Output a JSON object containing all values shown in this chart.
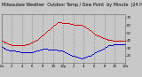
{
  "title": "Milwaukee Weather  Outdoor Temp / Dew Point  by Minute  (24 Hours) (Alternate)",
  "background_color": "#c8c8c8",
  "plot_bg_color": "#c8c8c8",
  "grid_color": "#888888",
  "temp_color": "#cc0000",
  "dew_color": "#0000cc",
  "ylim": [
    10,
    75
  ],
  "xlim": [
    0,
    1440
  ],
  "yticks": [
    20,
    30,
    40,
    50,
    60,
    70
  ],
  "xticks": [
    0,
    120,
    240,
    360,
    480,
    600,
    720,
    840,
    960,
    1080,
    1200,
    1320,
    1440
  ],
  "xtick_labels": [
    "12a",
    "2",
    "4",
    "6",
    "8",
    "10",
    "12p",
    "2",
    "4",
    "6",
    "8",
    "10",
    "12a"
  ],
  "title_fontsize": 3.5,
  "tick_fontsize": 2.8,
  "temp_data_x": [
    0,
    10,
    20,
    30,
    40,
    50,
    60,
    70,
    80,
    90,
    100,
    110,
    120,
    130,
    140,
    150,
    160,
    170,
    180,
    190,
    200,
    210,
    220,
    230,
    240,
    250,
    260,
    270,
    280,
    290,
    300,
    310,
    320,
    330,
    340,
    350,
    360,
    370,
    380,
    390,
    400,
    410,
    420,
    430,
    440,
    450,
    460,
    470,
    480,
    490,
    500,
    510,
    520,
    530,
    540,
    550,
    560,
    570,
    580,
    590,
    600,
    610,
    620,
    630,
    640,
    650,
    660,
    670,
    680,
    690,
    700,
    710,
    720,
    730,
    740,
    750,
    760,
    770,
    780,
    790,
    800,
    810,
    820,
    830,
    840,
    850,
    860,
    870,
    880,
    890,
    900,
    910,
    920,
    930,
    940,
    950,
    960,
    970,
    980,
    990,
    1000,
    1010,
    1020,
    1030,
    1040,
    1050,
    1060,
    1070,
    1080,
    1090,
    1100,
    1110,
    1120,
    1130,
    1140,
    1150,
    1160,
    1170,
    1180,
    1190,
    1200,
    1210,
    1220,
    1230,
    1240,
    1250,
    1260,
    1270,
    1280,
    1290,
    1300,
    1310,
    1320,
    1330,
    1340,
    1350,
    1360,
    1370,
    1380,
    1390,
    1400,
    1410,
    1420,
    1430,
    1440
  ],
  "temp_data_y": [
    38,
    38,
    37,
    37,
    36,
    36,
    36,
    35,
    35,
    34,
    34,
    34,
    33,
    33,
    33,
    33,
    33,
    33,
    33,
    33,
    33,
    33,
    33,
    33,
    33,
    33,
    33,
    33,
    34,
    34,
    34,
    34,
    35,
    35,
    35,
    36,
    36,
    37,
    37,
    38,
    38,
    39,
    40,
    41,
    42,
    43,
    44,
    45,
    46,
    47,
    48,
    49,
    50,
    51,
    52,
    53,
    54,
    55,
    56,
    57,
    58,
    59,
    60,
    61,
    61,
    62,
    63,
    63,
    63,
    63,
    63,
    62,
    62,
    62,
    62,
    62,
    62,
    62,
    62,
    62,
    61,
    61,
    61,
    61,
    60,
    60,
    60,
    60,
    60,
    60,
    60,
    60,
    60,
    59,
    59,
    58,
    58,
    57,
    57,
    56,
    55,
    55,
    54,
    53,
    52,
    51,
    50,
    49,
    48,
    47,
    47,
    46,
    46,
    45,
    44,
    44,
    43,
    43,
    42,
    42,
    42,
    41,
    41,
    41,
    40,
    40,
    40,
    39,
    39,
    39,
    38,
    38,
    38,
    38,
    38,
    38,
    38,
    38,
    38,
    38,
    38,
    38,
    38,
    38,
    38
  ],
  "dew_data_x": [
    0,
    10,
    20,
    30,
    40,
    50,
    60,
    70,
    80,
    90,
    100,
    110,
    120,
    130,
    140,
    150,
    160,
    170,
    180,
    190,
    200,
    210,
    220,
    230,
    240,
    250,
    260,
    270,
    280,
    290,
    300,
    310,
    320,
    330,
    340,
    350,
    360,
    370,
    380,
    390,
    400,
    410,
    420,
    430,
    440,
    450,
    460,
    470,
    480,
    490,
    500,
    510,
    520,
    530,
    540,
    550,
    560,
    570,
    580,
    590,
    600,
    610,
    620,
    630,
    640,
    650,
    660,
    670,
    680,
    690,
    700,
    710,
    720,
    730,
    740,
    750,
    760,
    770,
    780,
    790,
    800,
    810,
    820,
    830,
    840,
    850,
    860,
    870,
    880,
    890,
    900,
    910,
    920,
    930,
    940,
    950,
    960,
    970,
    980,
    990,
    1000,
    1010,
    1020,
    1030,
    1040,
    1050,
    1060,
    1070,
    1080,
    1090,
    1100,
    1110,
    1120,
    1130,
    1140,
    1150,
    1160,
    1170,
    1180,
    1190,
    1200,
    1210,
    1220,
    1230,
    1240,
    1250,
    1260,
    1270,
    1280,
    1290,
    1300,
    1310,
    1320,
    1330,
    1340,
    1350,
    1360,
    1370,
    1380,
    1390,
    1400,
    1410,
    1420,
    1430,
    1440
  ],
  "dew_data_y": [
    30,
    30,
    29,
    29,
    28,
    28,
    27,
    27,
    27,
    26,
    26,
    26,
    26,
    25,
    25,
    25,
    25,
    24,
    24,
    24,
    24,
    24,
    23,
    23,
    23,
    23,
    23,
    23,
    23,
    23,
    23,
    23,
    23,
    23,
    23,
    23,
    23,
    23,
    24,
    24,
    24,
    25,
    25,
    26,
    26,
    27,
    27,
    27,
    28,
    28,
    28,
    28,
    28,
    28,
    27,
    27,
    27,
    27,
    27,
    27,
    27,
    27,
    27,
    27,
    27,
    27,
    26,
    26,
    26,
    25,
    25,
    25,
    24,
    24,
    23,
    23,
    22,
    22,
    21,
    21,
    20,
    20,
    19,
    19,
    18,
    18,
    17,
    17,
    17,
    16,
    16,
    16,
    15,
    15,
    15,
    15,
    16,
    16,
    16,
    17,
    17,
    18,
    18,
    19,
    19,
    20,
    21,
    21,
    22,
    23,
    23,
    24,
    24,
    25,
    25,
    26,
    27,
    27,
    28,
    28,
    29,
    30,
    30,
    31,
    31,
    32,
    32,
    33,
    33,
    33,
    33,
    34,
    34,
    34,
    34,
    34,
    34,
    34,
    34,
    34,
    34,
    34,
    34,
    34,
    34
  ]
}
